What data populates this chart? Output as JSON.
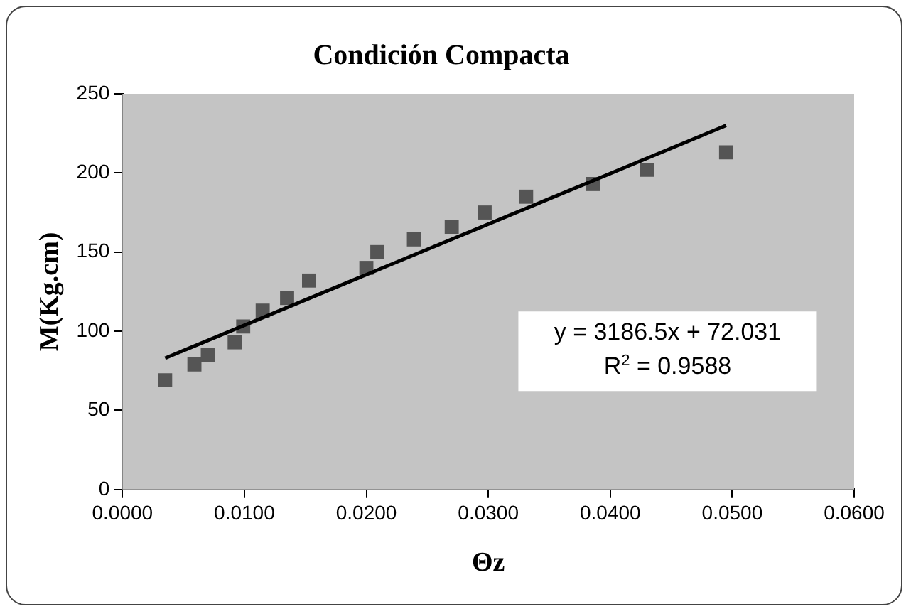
{
  "chart_data": {
    "type": "scatter",
    "title": "Condición Compacta",
    "xlabel": "Θz",
    "ylabel": "M(Kg.cm)",
    "xlim": [
      0,
      0.06
    ],
    "xticks": [
      {
        "value": 0,
        "label": "0.0000"
      },
      {
        "value": 0.01,
        "label": "0.0100"
      },
      {
        "value": 0.02,
        "label": "0.0200"
      },
      {
        "value": 0.03,
        "label": "0.0300"
      },
      {
        "value": 0.04,
        "label": "0.0400"
      },
      {
        "value": 0.05,
        "label": "0.0500"
      },
      {
        "value": 0.06,
        "label": "0.0600"
      }
    ],
    "ylim": [
      0,
      250
    ],
    "yticks": [
      0,
      50,
      100,
      150,
      200,
      250
    ],
    "series": [
      {
        "color": "#555555",
        "marker": "square",
        "x": [
          0.0035,
          0.0059,
          0.007,
          0.0092,
          0.0099,
          0.0115,
          0.0135,
          0.0153,
          0.02,
          0.0209,
          0.0239,
          0.027,
          0.0297,
          0.0331,
          0.0386,
          0.043,
          0.0495
        ],
        "values": [
          69,
          79,
          85,
          93,
          103,
          113,
          121,
          132,
          140,
          150,
          158,
          166,
          175,
          185,
          193,
          202,
          213
        ]
      },
      {
        "type": "line",
        "marker": "none",
        "color": "#000000",
        "x": [
          0.0035,
          0.0495
        ],
        "values": [
          83,
          230
        ]
      }
    ],
    "annotations": [
      "y = 3186.5x + 72.031",
      "R$^{2}$ = 0.9588"
    ]
  }
}
